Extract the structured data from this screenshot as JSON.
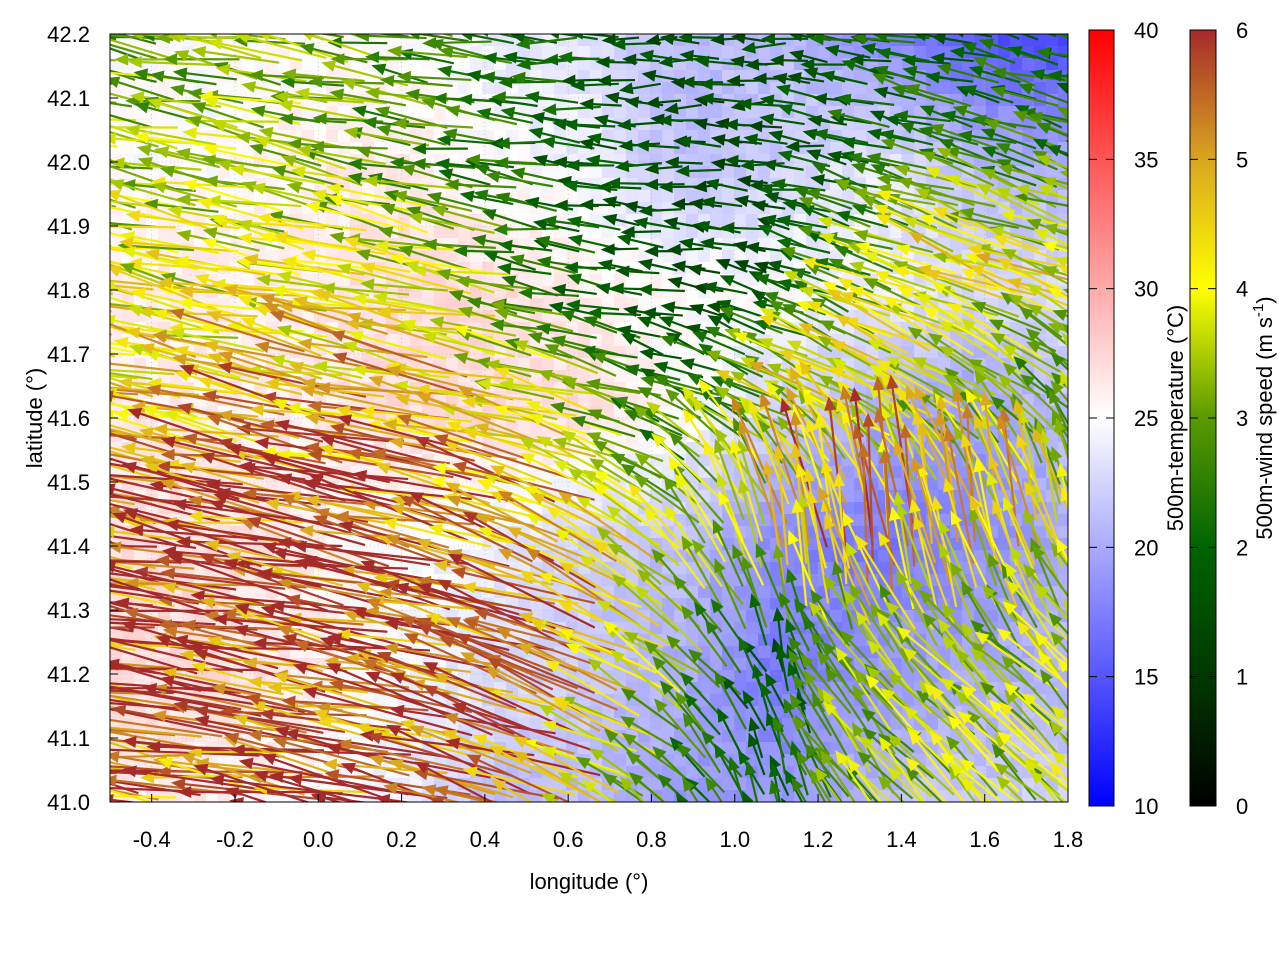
{
  "chart_data": {
    "type": "heatmap",
    "subtype": "vector-field-over-heatmap",
    "xlabel": "longitude (°)",
    "ylabel": "latitude (°)",
    "xlim": [
      -0.5,
      1.8
    ],
    "ylim": [
      41.0,
      42.2
    ],
    "xticks": [
      "-0.4",
      "-0.2",
      "0.0",
      "0.2",
      "0.4",
      "0.6",
      "0.8",
      "1.0",
      "1.2",
      "1.4",
      "1.6",
      "1.8"
    ],
    "yticks": [
      "41.0",
      "41.1",
      "41.2",
      "41.3",
      "41.4",
      "41.5",
      "41.6",
      "41.7",
      "41.8",
      "41.9",
      "42.0",
      "42.1",
      "42.2"
    ],
    "grid": true,
    "grid_lon": [
      -0.5,
      -0.27,
      -0.04,
      0.19,
      0.42,
      0.65,
      0.88,
      1.11,
      1.34,
      1.57,
      1.8
    ],
    "grid_lat": [
      42.2,
      42.0,
      41.8,
      41.6,
      41.4,
      41.2,
      41.0
    ],
    "temperature_grid": [
      [
        25,
        25,
        25,
        25,
        24,
        23,
        21,
        21,
        18,
        15,
        14
      ],
      [
        25,
        25,
        26,
        26,
        25,
        24,
        21,
        22,
        24,
        21,
        20
      ],
      [
        26,
        26,
        26,
        27,
        27,
        26,
        25,
        25,
        24,
        23,
        23
      ],
      [
        26,
        26,
        26,
        27,
        27,
        27,
        25,
        22,
        20,
        19,
        21
      ],
      [
        27,
        27,
        26,
        25,
        24,
        22,
        21,
        18,
        17,
        18,
        20
      ],
      [
        27,
        27,
        26,
        25,
        23,
        22,
        20,
        17,
        19,
        20,
        21
      ],
      [
        26,
        26,
        25,
        24,
        21,
        21,
        19,
        19,
        21,
        22,
        22
      ]
    ],
    "wind_u": [
      [
        -3,
        -3,
        -3,
        -3,
        -2.5,
        -2,
        -1.5,
        -1.5,
        -2,
        -2,
        -2
      ],
      [
        -3.5,
        -3.5,
        -3.5,
        -3,
        -2.5,
        -2,
        -1.5,
        -1.5,
        -2,
        -2.5,
        -2.5
      ],
      [
        -4,
        -4,
        -4,
        -4,
        -3.5,
        -2,
        -1.5,
        -1.5,
        -3,
        -4,
        -4
      ],
      [
        -4.5,
        -4.5,
        -5,
        -5,
        -5,
        -4,
        -2,
        -3,
        -4,
        -3,
        -2
      ],
      [
        -5.5,
        -5.8,
        -5.8,
        -5.8,
        -5.5,
        -5,
        -3,
        -1,
        -0.5,
        -0.5,
        -1
      ],
      [
        -5.8,
        -5.8,
        -5.8,
        -5.8,
        -5.8,
        -5.5,
        -3,
        -0.5,
        -2,
        -2.5,
        -2.5
      ],
      [
        -5,
        -5.5,
        -5.5,
        -5.8,
        -5.5,
        -5,
        -2,
        -0.5,
        -2,
        -2.5,
        -2.5
      ]
    ],
    "wind_v": [
      [
        0.5,
        0.5,
        0.5,
        0.5,
        0.3,
        0,
        0,
        0,
        0.3,
        0.5,
        0.5
      ],
      [
        0.6,
        0.6,
        0.6,
        0.6,
        0.4,
        0.2,
        0,
        0,
        0.5,
        0.8,
        0.8
      ],
      [
        0.8,
        0.8,
        0.8,
        0.8,
        0.6,
        0.3,
        0.2,
        0.5,
        1.2,
        1.5,
        1.5
      ],
      [
        1,
        1,
        1,
        1,
        1,
        1,
        1,
        1.5,
        2,
        2,
        2
      ],
      [
        1,
        1,
        1,
        1.2,
        1.4,
        1.8,
        2.5,
        5,
        5.5,
        5,
        4
      ],
      [
        0.8,
        0.8,
        0.9,
        1,
        1.4,
        1.8,
        2,
        1.5,
        2.5,
        2.5,
        2.5
      ],
      [
        0.8,
        0.8,
        0.8,
        1,
        1.4,
        1.8,
        2,
        2,
        2.5,
        2.5,
        2.5
      ]
    ],
    "colorbars": [
      {
        "label": "500m-temperature (°C)",
        "range": [
          10,
          40
        ],
        "ticks": [
          "10",
          "15",
          "20",
          "25",
          "30",
          "35",
          "40"
        ],
        "palette": [
          "#0000ff",
          "#ffffff",
          "#ff0000"
        ]
      },
      {
        "label": "500m-wind speed (m s",
        "label_sup": "-1",
        "label_end": ")",
        "range": [
          0,
          6
        ],
        "ticks": [
          "0",
          "1",
          "2",
          "3",
          "4",
          "5",
          "6"
        ],
        "palette": [
          "#000000",
          "#004a00",
          "#006400",
          "#5a9a00",
          "#ffff00",
          "#daa520",
          "#a52a2a"
        ]
      }
    ]
  }
}
